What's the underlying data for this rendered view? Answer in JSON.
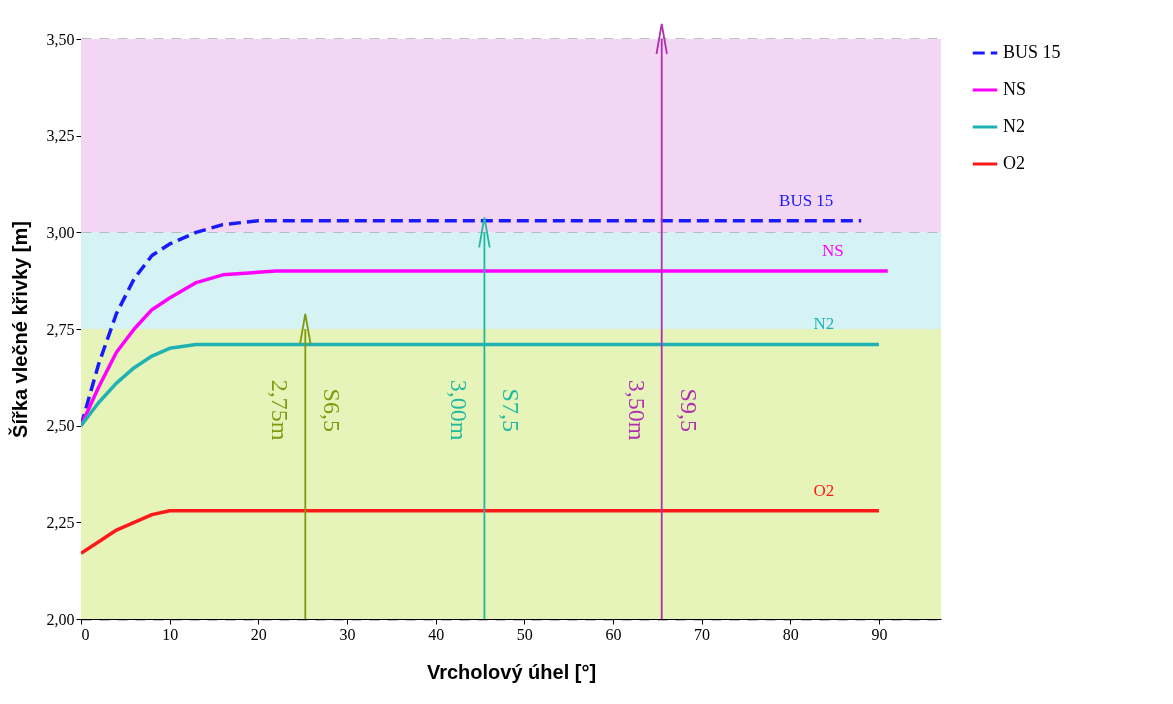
{
  "chart_data": {
    "type": "line",
    "xlabel": "Vrcholový úhel [°]",
    "ylabel": "Šířka vlečné křivky [m]",
    "xlim": [
      0,
      97
    ],
    "xticks": [
      0,
      10,
      20,
      30,
      40,
      50,
      60,
      70,
      80,
      90
    ],
    "ylim": [
      2.0,
      3.5
    ],
    "yticks": [
      {
        "value": 2.0,
        "label": "2,00"
      },
      {
        "value": 2.25,
        "label": "2,25"
      },
      {
        "value": 2.5,
        "label": "2,50"
      },
      {
        "value": 2.75,
        "label": "2,75"
      },
      {
        "value": 3.0,
        "label": "3,00"
      },
      {
        "value": 3.25,
        "label": "3,25"
      },
      {
        "value": 3.5,
        "label": "3,50"
      }
    ],
    "grid": "y",
    "legend": "right",
    "bands": [
      {
        "axis": "y",
        "from": 2.0,
        "to": 2.75,
        "color": "#e6f3b9"
      },
      {
        "axis": "y",
        "from": 2.75,
        "to": 3.0,
        "color": "#d5f2f4"
      },
      {
        "axis": "y",
        "from": 3.0,
        "to": 3.5,
        "color": "#f3d6f3"
      }
    ],
    "series": [
      {
        "name": "BUS 15",
        "color": "#1a1aff",
        "line_style": "dashed",
        "x": [
          0,
          2,
          4,
          6,
          8,
          10,
          13,
          16,
          20,
          88
        ],
        "values": [
          2.5,
          2.66,
          2.79,
          2.88,
          2.94,
          2.97,
          3.0,
          3.02,
          3.03,
          3.03
        ]
      },
      {
        "name": "NS",
        "color": "#ff00ff",
        "x": [
          0,
          2,
          4,
          6,
          8,
          10,
          13,
          16,
          22,
          91
        ],
        "values": [
          2.5,
          2.6,
          2.69,
          2.75,
          2.8,
          2.83,
          2.87,
          2.89,
          2.9,
          2.9
        ]
      },
      {
        "name": "N2",
        "color": "#20b2b2",
        "x": [
          0,
          2,
          4,
          6,
          8,
          10,
          13,
          16,
          90
        ],
        "values": [
          2.5,
          2.56,
          2.61,
          2.65,
          2.68,
          2.7,
          2.71,
          2.71,
          2.71
        ]
      },
      {
        "name": "O2",
        "color": "#ff1a1a",
        "x": [
          0,
          2,
          4,
          6,
          8,
          10,
          12,
          90
        ],
        "values": [
          2.17,
          2.2,
          2.23,
          2.25,
          2.27,
          2.28,
          2.28,
          2.28
        ]
      },
      {
        "type": "line",
        "color": "#7f9a10",
        "x": [
          25.3,
          25.3
        ],
        "values": [
          2.0,
          2.75
        ]
      },
      {
        "type": "line",
        "color": "#20b8a0",
        "x": [
          45.5,
          45.5
        ],
        "values": [
          2.0,
          3.0
        ]
      },
      {
        "type": "line",
        "color": "#b030b0",
        "x": [
          65.5,
          65.5
        ],
        "values": [
          2.0,
          3.5
        ]
      }
    ],
    "annotations": [
      "2,75m",
      "S6,5",
      "3,00m",
      "S7,5",
      "3,50m",
      "S9,5"
    ]
  }
}
